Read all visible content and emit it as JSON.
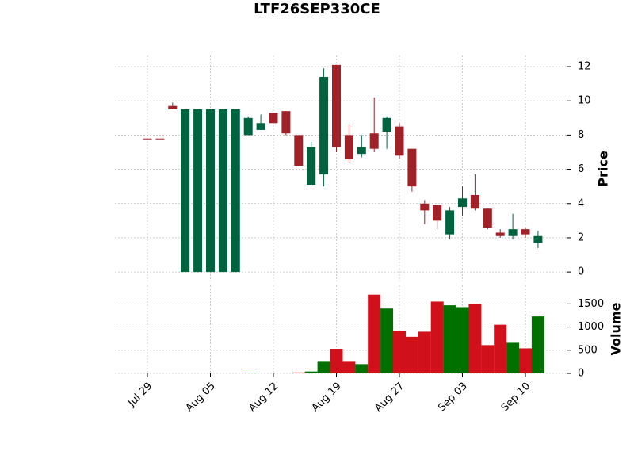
{
  "chart_data": {
    "type": "candlestick",
    "title": "LTF26SEP330CE",
    "categories": [
      "Jul 29",
      null,
      null,
      null,
      null,
      "Aug 05",
      null,
      null,
      null,
      null,
      "Aug 12",
      null,
      null,
      null,
      null,
      "Aug 19",
      null,
      null,
      null,
      null,
      "Aug 27",
      null,
      null,
      null,
      null,
      "Sep 03",
      null,
      null,
      null,
      null,
      "Sep 10",
      null
    ],
    "open": [
      7.8,
      7.8,
      9.7,
      0,
      0,
      0,
      0,
      0,
      8.0,
      8.3,
      9.3,
      9.4,
      8.0,
      5.1,
      5.7,
      12.1,
      8.0,
      6.9,
      8.1,
      8.2,
      8.5,
      7.2,
      4.0,
      3.9,
      2.2,
      3.8,
      4.5,
      3.7,
      2.3,
      2.1,
      2.5,
      1.7
    ],
    "high": [
      7.8,
      7.8,
      9.9,
      9.5,
      9.5,
      9.5,
      9.5,
      9.5,
      9.1,
      9.2,
      9.3,
      9.4,
      8.0,
      7.6,
      11.9,
      12.1,
      8.6,
      8.0,
      10.2,
      9.1,
      8.7,
      7.2,
      4.2,
      3.9,
      3.8,
      5.0,
      5.7,
      3.7,
      2.5,
      3.4,
      2.6,
      2.4
    ],
    "low": [
      7.8,
      7.8,
      9.5,
      0,
      0,
      0,
      0,
      0,
      8.0,
      8.3,
      8.7,
      8.0,
      6.2,
      5.1,
      5.0,
      7.0,
      6.4,
      6.7,
      7.0,
      7.2,
      6.6,
      4.7,
      2.8,
      2.5,
      1.9,
      3.3,
      3.6,
      2.5,
      2.0,
      1.9,
      2.0,
      1.4
    ],
    "close": [
      7.8,
      7.8,
      9.5,
      9.5,
      9.5,
      9.5,
      9.5,
      9.5,
      9.0,
      8.7,
      8.7,
      8.1,
      6.2,
      7.3,
      11.4,
      7.3,
      6.6,
      7.3,
      7.2,
      9.0,
      6.8,
      5.0,
      3.6,
      3.0,
      3.6,
      4.3,
      3.7,
      2.6,
      2.1,
      2.5,
      2.2,
      2.1
    ],
    "volume": [
      0,
      0,
      0,
      0,
      0,
      0,
      0,
      0,
      10,
      0,
      0,
      0,
      20,
      40,
      250,
      530,
      250,
      200,
      1700,
      1400,
      920,
      790,
      900,
      1550,
      1470,
      1430,
      1500,
      610,
      1050,
      660,
      540,
      1230
    ],
    "ylabel": "Price",
    "y2label": "Volume",
    "ylim": [
      -0.55,
      12.65
    ],
    "yticks": [
      0,
      2,
      4,
      6,
      8,
      10,
      12
    ],
    "y2lim": [
      0,
      1900
    ],
    "y2ticks": [
      0,
      500,
      1000,
      1500
    ],
    "up_color": "#006340",
    "down_color": "#a02128",
    "volume_up_color": "#007000",
    "volume_down_color": "#d0101a",
    "grid": true
  }
}
